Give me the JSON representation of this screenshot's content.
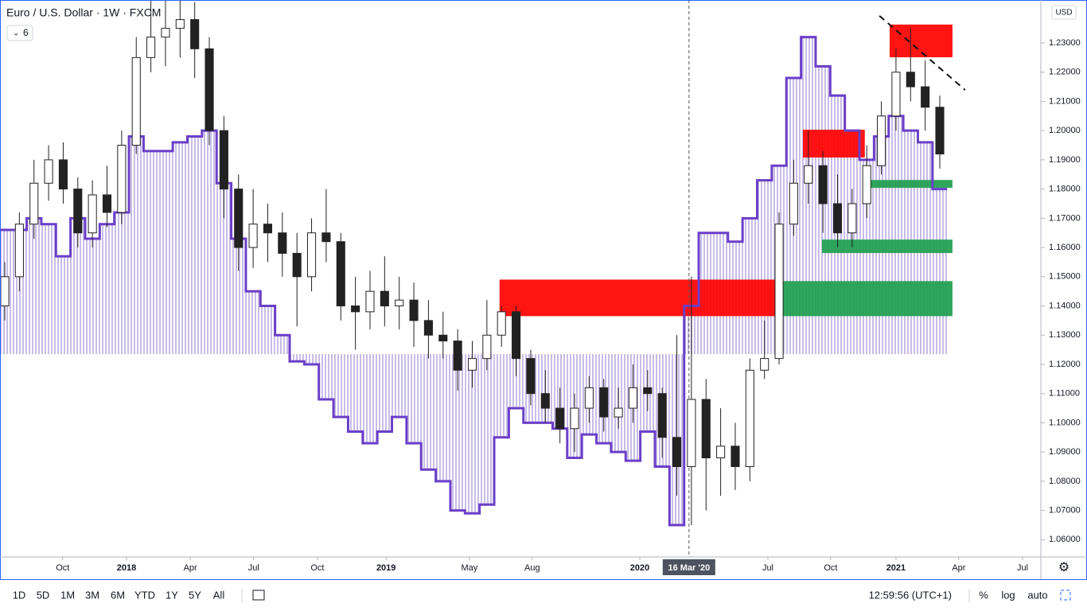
{
  "chart_data": {
    "type": "candlestick",
    "title": "Euro / U.S. Dollar · 1W · FXCM",
    "indicator_badge": "6",
    "currency": "USD",
    "up_color": "#ffffff",
    "down_color": "#222222",
    "x": [
      0,
      3,
      6,
      9,
      12,
      15,
      18,
      21,
      24,
      27,
      30,
      33,
      36,
      39,
      42,
      45,
      48,
      51,
      54,
      57,
      60,
      63,
      66,
      69,
      72,
      75,
      78,
      81,
      84,
      87,
      90,
      93,
      96,
      99,
      102,
      105,
      108,
      111,
      114,
      117,
      120,
      123,
      126,
      129,
      132,
      135,
      138,
      141,
      144,
      147,
      150,
      153,
      156,
      159,
      162,
      165,
      168,
      171,
      174,
      177,
      180,
      183,
      186,
      189,
      192
    ],
    "open": [
      1.14,
      1.15,
      1.168,
      1.182,
      1.19,
      1.18,
      1.165,
      1.178,
      1.172,
      1.195,
      1.225,
      1.232,
      1.235,
      1.238,
      1.228,
      1.2,
      1.18,
      1.16,
      1.168,
      1.165,
      1.158,
      1.15,
      1.165,
      1.162,
      1.14,
      1.138,
      1.145,
      1.14,
      1.142,
      1.135,
      1.13,
      1.128,
      1.118,
      1.122,
      1.13,
      1.138,
      1.122,
      1.11,
      1.105,
      1.098,
      1.105,
      1.112,
      1.102,
      1.105,
      1.112,
      1.11,
      1.095,
      1.085,
      1.108,
      1.088,
      1.092,
      1.085,
      1.118,
      1.122,
      1.168,
      1.182,
      1.188,
      1.175,
      1.165,
      1.175,
      1.188,
      1.205,
      1.22,
      1.215,
      1.208
    ],
    "high": [
      1.155,
      1.172,
      1.19,
      1.195,
      1.196,
      1.184,
      1.183,
      1.188,
      1.2,
      1.232,
      1.245,
      1.245,
      1.245,
      1.244,
      1.232,
      1.205,
      1.185,
      1.18,
      1.175,
      1.172,
      1.165,
      1.17,
      1.18,
      1.165,
      1.15,
      1.152,
      1.157,
      1.15,
      1.148,
      1.142,
      1.138,
      1.132,
      1.128,
      1.142,
      1.14,
      1.14,
      1.125,
      1.118,
      1.112,
      1.11,
      1.116,
      1.115,
      1.112,
      1.12,
      1.118,
      1.112,
      1.13,
      1.15,
      1.115,
      1.105,
      1.1,
      1.122,
      1.135,
      1.172,
      1.19,
      1.2,
      1.193,
      1.185,
      1.18,
      1.195,
      1.21,
      1.228,
      1.235,
      1.224,
      1.212
    ],
    "low": [
      1.135,
      1.145,
      1.163,
      1.176,
      1.175,
      1.16,
      1.16,
      1.167,
      1.168,
      1.192,
      1.22,
      1.222,
      1.225,
      1.218,
      1.195,
      1.17,
      1.152,
      1.153,
      1.155,
      1.15,
      1.133,
      1.145,
      1.155,
      1.135,
      1.125,
      1.132,
      1.133,
      1.132,
      1.126,
      1.122,
      1.122,
      1.111,
      1.112,
      1.118,
      1.126,
      1.116,
      1.106,
      1.1,
      1.093,
      1.09,
      1.1,
      1.097,
      1.098,
      1.1,
      1.104,
      1.088,
      1.075,
      1.065,
      1.07,
      1.075,
      1.077,
      1.08,
      1.115,
      1.12,
      1.164,
      1.175,
      1.165,
      1.16,
      1.16,
      1.17,
      1.185,
      1.2,
      1.21,
      1.2,
      1.187
    ],
    "close": [
      1.15,
      1.168,
      1.182,
      1.19,
      1.18,
      1.165,
      1.178,
      1.172,
      1.195,
      1.225,
      1.232,
      1.235,
      1.238,
      1.228,
      1.2,
      1.18,
      1.16,
      1.168,
      1.165,
      1.158,
      1.15,
      1.165,
      1.162,
      1.14,
      1.138,
      1.145,
      1.14,
      1.142,
      1.135,
      1.13,
      1.128,
      1.118,
      1.122,
      1.13,
      1.138,
      1.122,
      1.11,
      1.105,
      1.098,
      1.105,
      1.112,
      1.102,
      1.105,
      1.112,
      1.11,
      1.095,
      1.085,
      1.108,
      1.088,
      1.092,
      1.085,
      1.118,
      1.122,
      1.168,
      1.182,
      1.188,
      1.175,
      1.165,
      1.175,
      1.188,
      1.205,
      1.22,
      1.215,
      1.208,
      1.192
    ],
    "overlay": {
      "color": "#6a3fc8",
      "fill_color": "#c8bce6",
      "baseline": 1.1235,
      "values": [
        1.166,
        1.166,
        1.17,
        1.168,
        1.157,
        1.17,
        1.163,
        1.168,
        1.172,
        1.198,
        1.193,
        1.193,
        1.196,
        1.198,
        1.2,
        1.182,
        1.163,
        1.145,
        1.14,
        1.13,
        1.121,
        1.12,
        1.108,
        1.102,
        1.097,
        1.093,
        1.097,
        1.102,
        1.093,
        1.084,
        1.08,
        1.07,
        1.069,
        1.072,
        1.095,
        1.105,
        1.1,
        1.1,
        1.098,
        1.088,
        1.096,
        1.093,
        1.09,
        1.087,
        1.097,
        1.085,
        1.065,
        1.14,
        1.165,
        1.165,
        1.162,
        1.17,
        1.183,
        1.188,
        1.218,
        1.232,
        1.222,
        1.212,
        1.2,
        1.19,
        1.198,
        1.205,
        1.2,
        1.196,
        1.18
      ]
    },
    "zones": [
      {
        "x0": 101.6,
        "x1": 158.3,
        "lo": 1.1365,
        "hi": 1.149,
        "color": "#ff0000"
      },
      {
        "x0": 163.9,
        "x1": 176.6,
        "lo": 1.1908,
        "hi": 1.2003,
        "color": "#ff0000"
      },
      {
        "x0": 181.7,
        "x1": 194.6,
        "lo": 1.2251,
        "hi": 1.2363,
        "color": "#ff0000"
      },
      {
        "x0": 176.8,
        "x1": 194.6,
        "lo": 1.1804,
        "hi": 1.1831,
        "color": "#1e9e4e"
      },
      {
        "x0": 167.8,
        "x1": 194.6,
        "lo": 1.1581,
        "hi": 1.1627,
        "color": "#1e9e4e"
      },
      {
        "x0": 158.3,
        "x1": 194.6,
        "lo": 1.1365,
        "hi": 1.1485,
        "color": "#1e9e4e"
      }
    ],
    "trendline": {
      "x": [
        179.6,
        197.2
      ],
      "y": [
        1.2393,
        1.2139
      ]
    },
    "cursor": {
      "value": 140.5,
      "label": "16 Mar '20"
    },
    "xlim": [
      -0.98,
      212.75
    ],
    "ylim": [
      1.0541,
      1.2447
    ],
    "xticks": [
      {
        "value": 11.9,
        "label": "Oct"
      },
      {
        "value": 25,
        "label": "2018"
      },
      {
        "value": 38.1,
        "label": "Apr"
      },
      {
        "value": 51.1,
        "label": "Jul"
      },
      {
        "value": 64.2,
        "label": "Oct"
      },
      {
        "value": 78.3,
        "label": "2019"
      },
      {
        "value": 95.4,
        "label": "May"
      },
      {
        "value": 108.3,
        "label": "Aug"
      },
      {
        "value": 130.4,
        "label": "2020"
      },
      {
        "value": 156.7,
        "label": "Jul"
      },
      {
        "value": 169.6,
        "label": "Oct"
      },
      {
        "value": 183,
        "label": "2021"
      },
      {
        "value": 195.9,
        "label": "Apr"
      },
      {
        "value": 209,
        "label": "Jul"
      }
    ],
    "yticks": [
      {
        "value": 1.06,
        "label": "1.06000"
      },
      {
        "value": 1.07,
        "label": "1.07000"
      },
      {
        "value": 1.08,
        "label": "1.08000"
      },
      {
        "value": 1.09,
        "label": "1.09000"
      },
      {
        "value": 1.1,
        "label": "1.10000"
      },
      {
        "value": 1.11,
        "label": "1.11000"
      },
      {
        "value": 1.12,
        "label": "1.12000"
      },
      {
        "value": 1.13,
        "label": "1.13000"
      },
      {
        "value": 1.14,
        "label": "1.14000"
      },
      {
        "value": 1.15,
        "label": "1.15000"
      },
      {
        "value": 1.16,
        "label": "1.16000"
      },
      {
        "value": 1.17,
        "label": "1.17000"
      },
      {
        "value": 1.18,
        "label": "1.18000"
      },
      {
        "value": 1.19,
        "label": "1.19000"
      },
      {
        "value": 1.2,
        "label": "1.20000"
      },
      {
        "value": 1.21,
        "label": "1.21000"
      },
      {
        "value": 1.22,
        "label": "1.22000"
      },
      {
        "value": 1.23,
        "label": "1.23000"
      }
    ]
  },
  "toolbar": {
    "ranges": [
      "1D",
      "5D",
      "1M",
      "3M",
      "6M",
      "YTD",
      "1Y",
      "5Y",
      "All"
    ],
    "clock": "12:59:56 (UTC+1)",
    "options": [
      "%",
      "log",
      "auto"
    ]
  }
}
